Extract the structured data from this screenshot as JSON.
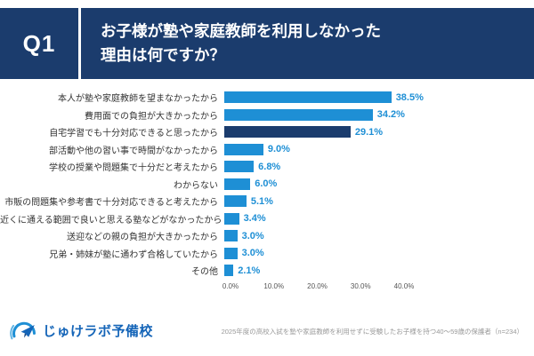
{
  "header": {
    "q_label": "Q1",
    "title_line1": "お子様が塾や家庭教師を利用しなかった",
    "title_line2": "理由は何ですか？"
  },
  "chart_data": {
    "type": "bar",
    "orientation": "horizontal",
    "title": "お子様が塾や家庭教師を利用しなかった理由は何ですか？",
    "categories": [
      "本人が塾や家庭教師を望まなかったから",
      "費用面での負担が大きかったから",
      "自宅学習でも十分対応できると思ったから",
      "部活動や他の習い事で時間がなかったから",
      "学校の授業や問題集で十分だと考えたから",
      "わからない",
      "市販の問題集や参考書で十分対応できると考えたから",
      "近くに通える範囲で良いと思える塾などがなかったから",
      "送迎などの親の負担が大きかったから",
      "兄弟・姉妹が塾に通わず合格していたから",
      "その他"
    ],
    "values": [
      38.5,
      34.2,
      29.1,
      9.0,
      6.8,
      6.0,
      5.1,
      3.4,
      3.0,
      3.0,
      2.1
    ],
    "value_labels": [
      "38.5%",
      "34.2%",
      "29.1%",
      "9.0%",
      "6.8%",
      "6.0%",
      "5.1%",
      "3.4%",
      "3.0%",
      "3.0%",
      "2.1%"
    ],
    "xlim": [
      0,
      40
    ],
    "ticks": [
      "0.0%",
      "10.0%",
      "20.0%",
      "30.0%",
      "40.0%"
    ],
    "highlight_index": 2,
    "legend": "none",
    "grid": "off",
    "colors": {
      "bar": "#1e8fd5",
      "highlight_bar": "#1b3c6d",
      "value_text": "#1e8fd5",
      "header_bg": "#1b3c6d"
    }
  },
  "footer": {
    "logo_text": "じゅけラボ予備校",
    "footnote": "2025年度の高校入試を塾や家庭教師を利用せずに受験したお子様を持つ40〜59歳の保護者（n=234）"
  }
}
